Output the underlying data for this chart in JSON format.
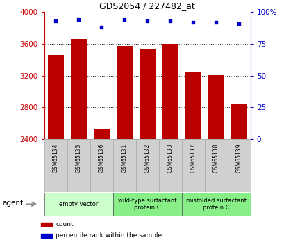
{
  "title": "GDS2054 / 227482_at",
  "categories": [
    "GSM65134",
    "GSM65135",
    "GSM65136",
    "GSM65131",
    "GSM65132",
    "GSM65133",
    "GSM65137",
    "GSM65138",
    "GSM65139"
  ],
  "counts": [
    3460,
    3660,
    2520,
    3570,
    3530,
    3600,
    3240,
    3210,
    2840
  ],
  "percentiles": [
    93,
    94,
    88,
    94,
    93,
    93,
    92,
    92,
    91
  ],
  "bar_color": "#bb0000",
  "dot_color": "#0000cc",
  "ylim_left": [
    2400,
    4000
  ],
  "ylim_right": [
    0,
    100
  ],
  "yticks_left": [
    2400,
    2800,
    3200,
    3600,
    4000
  ],
  "ytick_labels_left": [
    "2400",
    "2800",
    "3200",
    "3600",
    "4000"
  ],
  "yticks_right": [
    0,
    25,
    50,
    75,
    100
  ],
  "ytick_labels_right": [
    "0",
    "25",
    "50",
    "75",
    "100%"
  ],
  "groups": [
    {
      "label": "empty vector",
      "start": 0,
      "end": 3,
      "color": "#ccffcc"
    },
    {
      "label": "wild-type surfactant\nprotein C",
      "start": 3,
      "end": 6,
      "color": "#88ee88"
    },
    {
      "label": "misfolded surfactant\nprotein C",
      "start": 6,
      "end": 9,
      "color": "#88ee88"
    }
  ],
  "agent_label": "agent",
  "legend_items": [
    {
      "color": "#bb0000",
      "label": "count"
    },
    {
      "color": "#0000cc",
      "label": "percentile rank within the sample"
    }
  ],
  "left_axis_color": "#cc0000",
  "right_axis_color": "#0000cc"
}
